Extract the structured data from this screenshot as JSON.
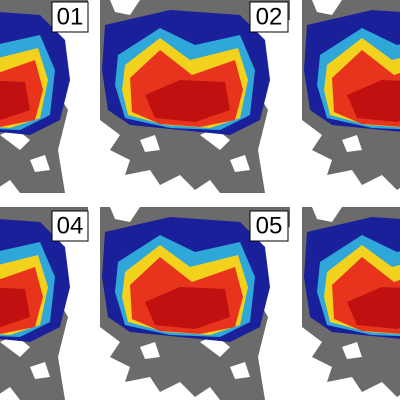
{
  "panels": [
    {
      "label": "01"
    },
    {
      "label": "02"
    },
    {
      "label": "04"
    },
    {
      "label": "05"
    }
  ]
}
